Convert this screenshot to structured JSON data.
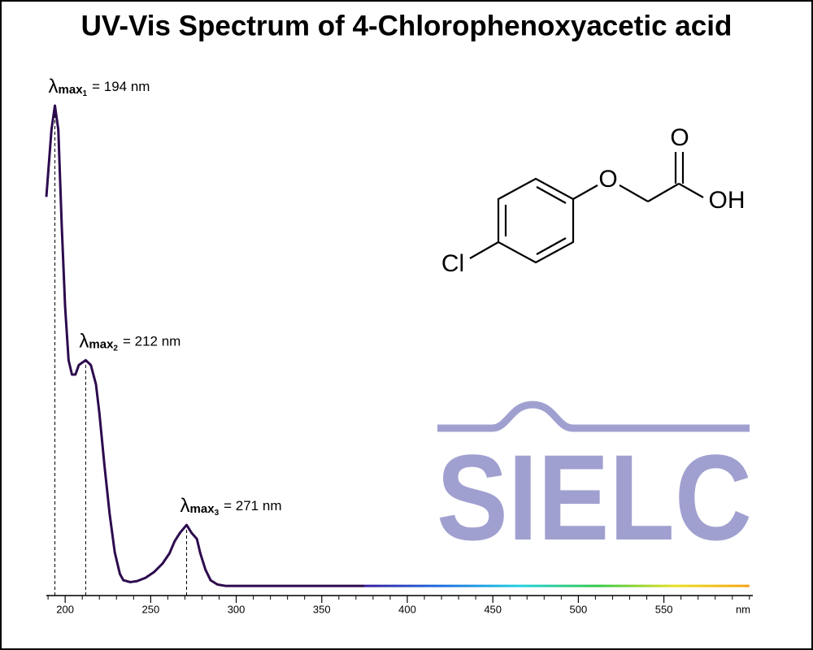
{
  "chart_data": {
    "type": "line",
    "title": "UV-Vis Spectrum of 4-Chlorophenoxyacetic acid",
    "xlabel": "nm",
    "x": [
      189,
      192,
      194,
      196,
      198,
      200,
      202,
      204,
      206,
      208,
      212,
      215,
      218,
      220,
      223,
      226,
      229,
      232,
      234,
      238,
      242,
      247,
      252,
      257,
      261,
      264,
      267,
      271,
      274,
      277,
      279,
      282,
      285,
      289,
      294,
      300,
      350,
      400,
      450,
      500,
      550,
      600
    ],
    "series": [
      {
        "color": "#2d0a4e",
        "values": [
          0.81,
          0.95,
          1.0,
          0.95,
          0.75,
          0.58,
          0.47,
          0.44,
          0.44,
          0.46,
          0.47,
          0.46,
          0.42,
          0.36,
          0.25,
          0.15,
          0.07,
          0.025,
          0.012,
          0.008,
          0.01,
          0.017,
          0.029,
          0.047,
          0.068,
          0.093,
          0.11,
          0.127,
          0.11,
          0.098,
          0.068,
          0.034,
          0.012,
          0.003,
          0,
          0,
          0,
          0,
          0,
          0,
          0,
          0
        ]
      }
    ],
    "gradient_colors": [
      "#2d0a4e",
      "#3a1fa0",
      "#1f6fe0",
      "#22d0e0",
      "#35c848",
      "#e8e020",
      "#f5a010"
    ],
    "xlim": [
      189,
      602
    ],
    "ylim": [
      -0.02,
      1.0
    ],
    "xticks": [
      200,
      250,
      300,
      350,
      400,
      450,
      500,
      550
    ],
    "xticks_minor": [
      190,
      210,
      220,
      230,
      240,
      260,
      270,
      280,
      290,
      310,
      320,
      330,
      340,
      360,
      370,
      380,
      390,
      410,
      420,
      430,
      440,
      460,
      470,
      480,
      490,
      510,
      520,
      530,
      540,
      560,
      570,
      580,
      590,
      600
    ],
    "annotations": [
      {
        "x": 194,
        "symbol": "λ",
        "sub": "max",
        "index": "1",
        "text": "= 194 nm"
      },
      {
        "x": 212,
        "symbol": "λ",
        "sub": "max",
        "index": "2",
        "text": "= 212 nm"
      },
      {
        "x": 271,
        "symbol": "λ",
        "sub": "max",
        "index": "3",
        "text": "= 271 nm"
      }
    ],
    "structure_labels": {
      "ether_o": "O",
      "carbonyl_o": "O",
      "hydroxyl": "OH",
      "chlorine": "Cl"
    },
    "watermark": "SIELC"
  }
}
